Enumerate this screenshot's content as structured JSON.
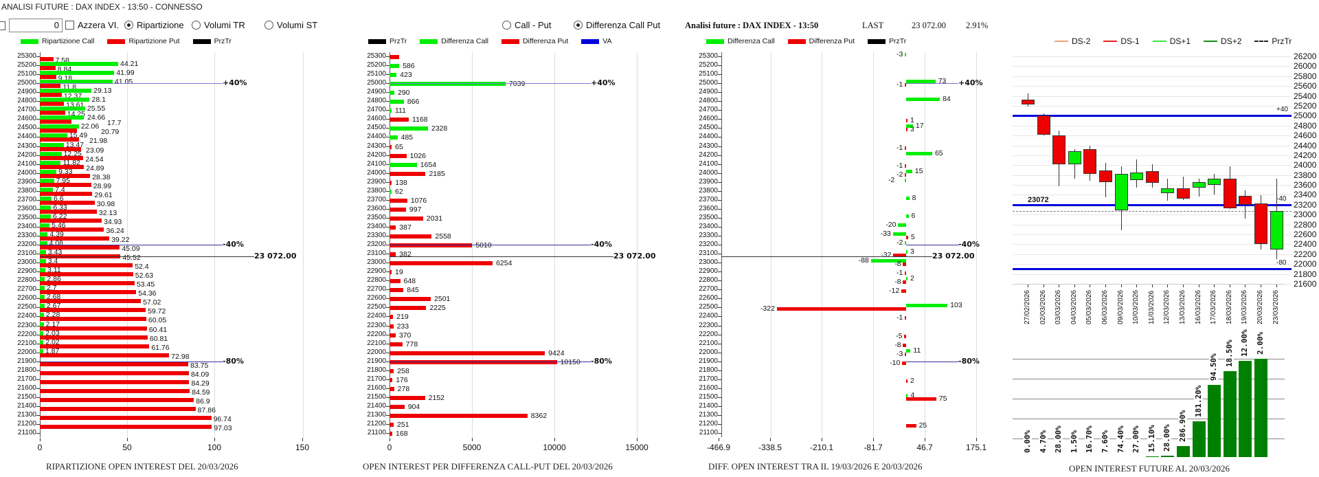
{
  "header": {
    "title": "ANALISI FUTURE : DAX INDEX - 13:50 - CONNESSO",
    "number_value": "0",
    "azzera_label": "Azzera VI.",
    "radio_ripartizione": "Ripartizione",
    "radio_volumi_tr": "Volumi TR",
    "radio_volumi_st": "Volumi ST",
    "radio_call_put": "Call - Put",
    "radio_diff_call_put": "Differenza Call Put",
    "selected_view": "Ripartizione",
    "selected_mode": "Differenza Call Put"
  },
  "info": {
    "label": "Analisi future : DAX INDEX - 13:50",
    "last_label": "LAST",
    "last_value": "23 072.00",
    "change": "2.91%"
  },
  "colors": {
    "call": "#00ee00",
    "put": "#ee0000",
    "przTr": "#000000",
    "va": "#0000dd",
    "future_bar": "#008000"
  },
  "ref_labels": {
    "plus40": "+40%",
    "minus40": "-40%",
    "minus80": "-80%",
    "price": "23 072.00"
  },
  "chart_data": [
    {
      "type": "bar",
      "orientation": "horizontal",
      "title": "RIPARTIZIONE OPEN INTEREST DEL 20/03/2026",
      "legend": [
        "Ripartizione Call",
        "Ripartizione Put",
        "PrzTr"
      ],
      "xticks": [
        "0",
        "50",
        "100",
        "150"
      ],
      "xlim": [
        0,
        150
      ],
      "rows": [
        [
          25300,
          null,
          7.58
        ],
        [
          25200,
          44.21,
          8.84
        ],
        [
          25100,
          41.99,
          9.18
        ],
        [
          25000,
          41.05,
          11.8
        ],
        [
          24900,
          29.13,
          12.37
        ],
        [
          24800,
          28.1,
          13.61
        ],
        [
          24700,
          25.55,
          14.25
        ],
        [
          24600,
          24.66,
          17.7
        ],
        [
          24500,
          22.06,
          20.79
        ],
        [
          24400,
          15.49,
          21.98
        ],
        [
          24300,
          13.47,
          23.09
        ],
        [
          24200,
          12.25,
          24.54
        ],
        [
          24100,
          11.82,
          24.89
        ],
        [
          24000,
          9.33,
          28.38
        ],
        [
          23900,
          7.95,
          28.99
        ],
        [
          23800,
          7.4,
          29.61
        ],
        [
          23700,
          6.6,
          30.98
        ],
        [
          23600,
          6.33,
          32.13
        ],
        [
          23500,
          6.22,
          34.93
        ],
        [
          23400,
          5.46,
          36.24
        ],
        [
          23300,
          4.39,
          39.22
        ],
        [
          23200,
          4.08,
          45.09
        ],
        [
          23100,
          3.43,
          45.52
        ],
        [
          23000,
          3.4,
          52.4
        ],
        [
          22900,
          3.11,
          52.63
        ],
        [
          22800,
          2.86,
          53.45
        ],
        [
          22700,
          2.7,
          54.36
        ],
        [
          22600,
          2.68,
          57.02
        ],
        [
          22500,
          2.67,
          59.72
        ],
        [
          22400,
          2.28,
          60.05
        ],
        [
          22300,
          2.17,
          60.41
        ],
        [
          22200,
          2.03,
          60.81
        ],
        [
          22100,
          2.02,
          61.76
        ],
        [
          22000,
          1.87,
          72.98
        ],
        [
          21900,
          null,
          83.75
        ],
        [
          21800,
          null,
          84.09
        ],
        [
          21700,
          null,
          84.29
        ],
        [
          21600,
          null,
          84.59
        ],
        [
          21500,
          null,
          86.9
        ],
        [
          21400,
          null,
          87.86
        ],
        [
          21300,
          null,
          96.74
        ],
        [
          21200,
          null,
          97.03
        ],
        [
          21100,
          null,
          null
        ]
      ]
    },
    {
      "type": "bar",
      "orientation": "horizontal",
      "title": "OPEN INTEREST PER DIFFERENZA CALL-PUT  DEL 20/03/2026",
      "legend": [
        "PrzTr",
        "Differenza Call",
        "Differenza Put",
        "VA"
      ],
      "xticks": [
        "0",
        "5000",
        "10000",
        "15000"
      ],
      "xlim": [
        0,
        15000
      ],
      "rows": [
        [
          25300,
          null,
          "put"
        ],
        [
          25200,
          586,
          "call"
        ],
        [
          25100,
          423,
          "call"
        ],
        [
          25000,
          7039,
          "call"
        ],
        [
          24900,
          290,
          "call"
        ],
        [
          24800,
          866,
          "call"
        ],
        [
          24700,
          111,
          "call"
        ],
        [
          24600,
          1168,
          "put"
        ],
        [
          24500,
          2328,
          "call"
        ],
        [
          24400,
          485,
          "call"
        ],
        [
          24300,
          65,
          "put"
        ],
        [
          24200,
          1026,
          "put"
        ],
        [
          24100,
          1654,
          "call"
        ],
        [
          24000,
          2185,
          "put"
        ],
        [
          23900,
          138,
          "put"
        ],
        [
          23800,
          62,
          "call"
        ],
        [
          23700,
          1076,
          "put"
        ],
        [
          23600,
          997,
          "put"
        ],
        [
          23500,
          2031,
          "put"
        ],
        [
          23400,
          387,
          "put"
        ],
        [
          23300,
          2558,
          "put"
        ],
        [
          23200,
          5010,
          "put"
        ],
        [
          23100,
          382,
          "put"
        ],
        [
          23000,
          6254,
          "put"
        ],
        [
          22900,
          19,
          "put"
        ],
        [
          22800,
          648,
          "put"
        ],
        [
          22700,
          845,
          "put"
        ],
        [
          22600,
          2501,
          "put"
        ],
        [
          22500,
          2225,
          "put"
        ],
        [
          22400,
          219,
          "put"
        ],
        [
          22300,
          233,
          "put"
        ],
        [
          22200,
          370,
          "put"
        ],
        [
          22100,
          778,
          "put"
        ],
        [
          22000,
          9424,
          "put"
        ],
        [
          21900,
          10150,
          "put"
        ],
        [
          21800,
          258,
          "put"
        ],
        [
          21700,
          176,
          "put"
        ],
        [
          21600,
          278,
          "put"
        ],
        [
          21500,
          2152,
          "put"
        ],
        [
          21400,
          904,
          "put"
        ],
        [
          21300,
          8362,
          "put"
        ],
        [
          21200,
          251,
          "put"
        ],
        [
          21100,
          168,
          "put"
        ]
      ]
    },
    {
      "type": "bar",
      "orientation": "horizontal",
      "title": "DIFF. OPEN INTEREST TRA IL 19/03/2026 E 20/03/2026",
      "legend": [
        "Differenza Call",
        "Differenza Put",
        "PrzTr"
      ],
      "xticks": [
        "-466.9",
        "-338.5",
        "-210.1",
        "-81.7",
        "46.7",
        "175.1"
      ],
      "xlim": [
        -466.9,
        175.1
      ],
      "rows": [
        [
          25300,
          -3,
          null
        ],
        [
          25200,
          null,
          null
        ],
        [
          25100,
          null,
          null
        ],
        [
          25000,
          73,
          -1
        ],
        [
          24900,
          null,
          null
        ],
        [
          24800,
          84,
          null
        ],
        [
          24700,
          null,
          null
        ],
        [
          24600,
          null,
          1
        ],
        [
          24500,
          17,
          3
        ],
        [
          24400,
          null,
          null
        ],
        [
          24300,
          null,
          -1
        ],
        [
          24200,
          65,
          null
        ],
        [
          24100,
          null,
          -1
        ],
        [
          24000,
          15,
          -2
        ],
        [
          23900,
          -2,
          null
        ],
        [
          23800,
          null,
          null
        ],
        [
          23700,
          8,
          null
        ],
        [
          23600,
          null,
          null
        ],
        [
          23500,
          6,
          null
        ],
        [
          23400,
          -20,
          null
        ],
        [
          23300,
          -33,
          5
        ],
        [
          23200,
          -2,
          null
        ],
        [
          23100,
          3,
          -32
        ],
        [
          23000,
          -88,
          -8
        ],
        [
          22900,
          null,
          -1
        ],
        [
          22800,
          2,
          -8
        ],
        [
          22700,
          null,
          -12
        ],
        [
          22600,
          null,
          null
        ],
        [
          22500,
          103,
          -322
        ],
        [
          22400,
          null,
          -1
        ],
        [
          22300,
          null,
          null
        ],
        [
          22200,
          null,
          -5
        ],
        [
          22100,
          null,
          -8
        ],
        [
          22000,
          11,
          -3
        ],
        [
          21900,
          null,
          -10
        ],
        [
          21800,
          null,
          null
        ],
        [
          21700,
          null,
          2
        ],
        [
          21600,
          null,
          null
        ],
        [
          21500,
          4,
          75
        ],
        [
          21400,
          null,
          null
        ],
        [
          21300,
          null,
          null
        ],
        [
          21200,
          null,
          25
        ],
        [
          21100,
          null,
          null
        ]
      ]
    },
    {
      "type": "candlestick",
      "legend": [
        "DS-2",
        "DS-1",
        "DS+1",
        "DS+2",
        "PrzTr"
      ],
      "ylim": [
        21600,
        26200
      ],
      "yticks": [
        "26200",
        "26000",
        "25800",
        "25600",
        "25400",
        "25200",
        "25000",
        "24800",
        "24600",
        "24400",
        "24200",
        "24000",
        "23800",
        "23600",
        "23400",
        "23200",
        "23000",
        "22800",
        "22600",
        "22400",
        "22200",
        "22000",
        "21800",
        "21600"
      ],
      "levels": {
        "plus40": 25000,
        "minus40": 23200,
        "minus80": 21900,
        "przTr": 23072
      },
      "level_labels": {
        "przTr": "23072",
        "plus40": "+40",
        "minus40": "-40",
        "minus80": "-80"
      },
      "dates": [
        "27/02/2026",
        "02/03/2026",
        "03/03/2026",
        "04/03/2026",
        "05/03/2026",
        "06/03/2026",
        "09/03/2026",
        "10/03/2026",
        "11/03/2026",
        "12/03/2026",
        "13/03/2026",
        "16/03/2026",
        "17/03/2026",
        "18/03/2026",
        "19/03/2026",
        "20/03/2026",
        "23/03/2026"
      ],
      "ohlc": [
        [
          25320,
          25450,
          25180,
          25230
        ],
        [
          25000,
          25050,
          24600,
          24620
        ],
        [
          24600,
          24700,
          23580,
          24020
        ],
        [
          24020,
          24330,
          23720,
          24280
        ],
        [
          24330,
          24400,
          23680,
          23830
        ],
        [
          23900,
          24050,
          23350,
          23650
        ],
        [
          23080,
          23970,
          22680,
          23830
        ],
        [
          23700,
          24120,
          23540,
          23850
        ],
        [
          23880,
          24020,
          23540,
          23640
        ],
        [
          23440,
          23730,
          23280,
          23530
        ],
        [
          23530,
          23770,
          23300,
          23330
        ],
        [
          23540,
          23720,
          23360,
          23650
        ],
        [
          23600,
          23830,
          23410,
          23720
        ],
        [
          23720,
          23970,
          23110,
          23130
        ],
        [
          23380,
          23490,
          22920,
          23200
        ],
        [
          23230,
          23390,
          22290,
          22410
        ],
        [
          22300,
          23720,
          22100,
          23070
        ]
      ]
    },
    {
      "type": "bar",
      "title": "OPEN INTEREST FUTURE AL 20/03/2026",
      "labels": [
        "0.00%",
        "4.70%",
        "28.00%",
        "1.50%",
        "16.70%",
        "7.60%",
        "74.40%",
        "27.00%",
        "15.10%",
        "28.00%",
        "286.90%",
        "181.20%",
        "94.50%",
        "18.50%",
        "12.00%",
        "2.00%"
      ],
      "relative_values": [
        0,
        0,
        0,
        0,
        0,
        0,
        0,
        0,
        0.7,
        1.2,
        11.2,
        36.5,
        73.3,
        87.2,
        97.7,
        100
      ]
    }
  ]
}
